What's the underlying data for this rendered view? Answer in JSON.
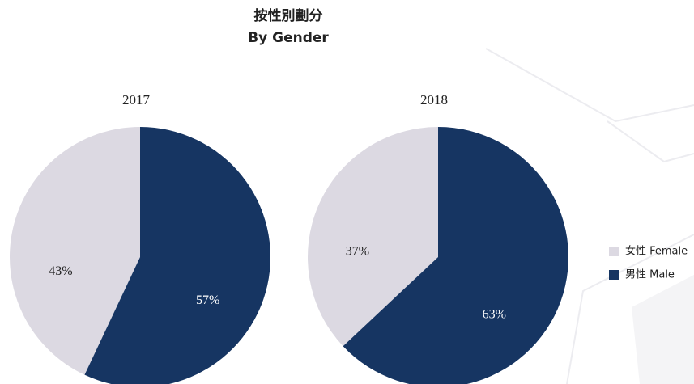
{
  "title": "按性別劃分",
  "subtitle": "By Gender",
  "chart_data": [
    {
      "type": "pie",
      "title": "2017",
      "categories": [
        "女性 Female",
        "男性 Male"
      ],
      "values": [
        43,
        57
      ],
      "value_labels": [
        "43%",
        "57%"
      ],
      "colors": [
        "#dcd9e2",
        "#163562"
      ]
    },
    {
      "type": "pie",
      "title": "2018",
      "categories": [
        "女性 Female",
        "男性 Male"
      ],
      "values": [
        37,
        63
      ],
      "value_labels": [
        "37%",
        "63%"
      ],
      "colors": [
        "#dcd9e2",
        "#163562"
      ]
    }
  ]
}
